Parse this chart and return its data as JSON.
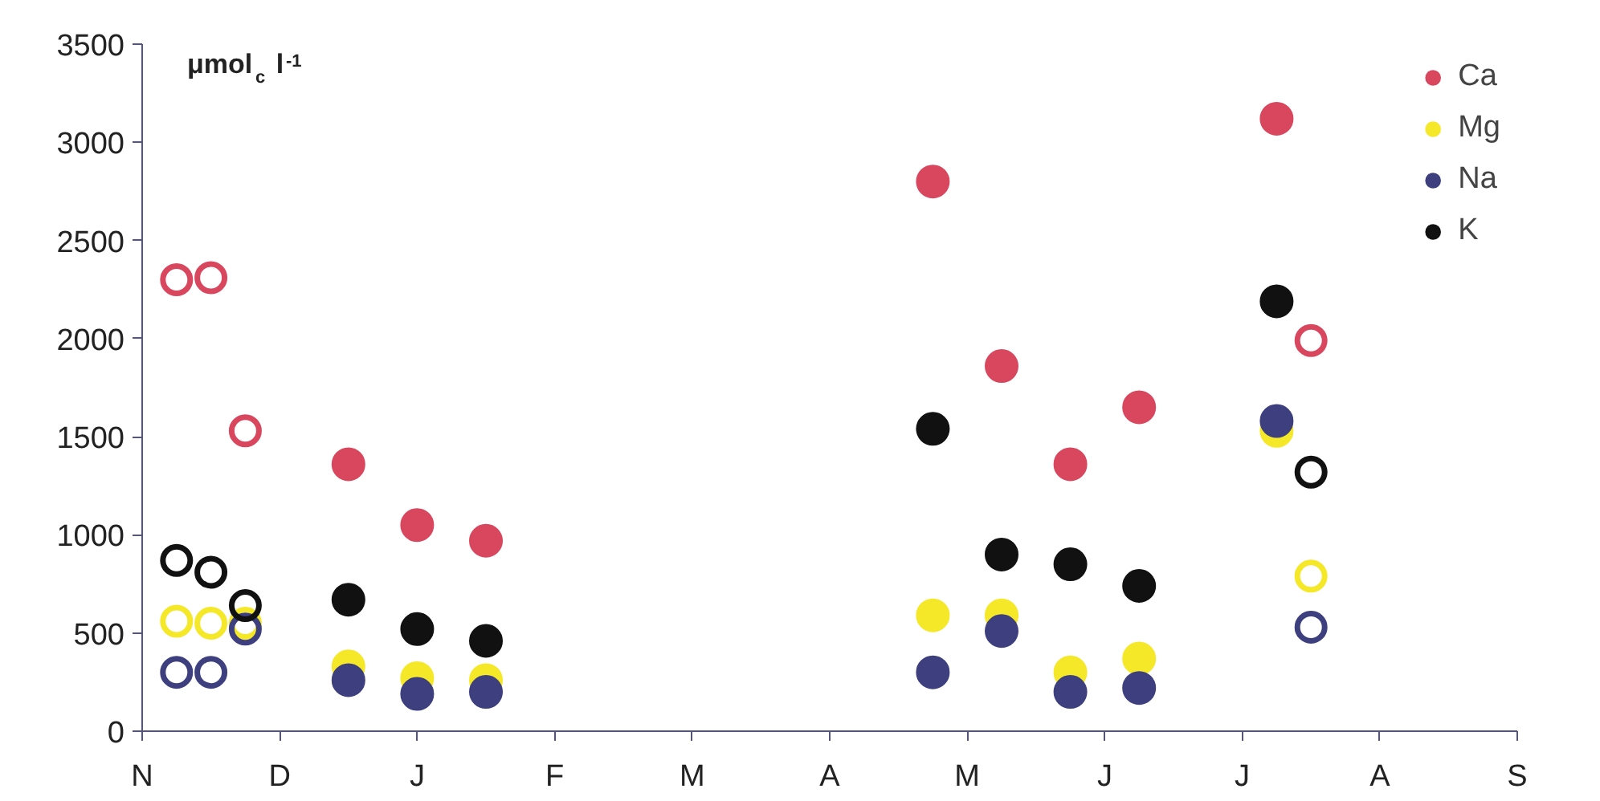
{
  "chart_data": {
    "type": "scatter",
    "ylabel": "μmol$_{c}$ l$^{-1}$",
    "categories": [
      "N",
      null,
      null,
      null,
      "D",
      null,
      null,
      null,
      "J",
      null,
      null,
      null,
      "F",
      null,
      null,
      null,
      "M",
      null,
      null,
      null,
      "A",
      null,
      null,
      null,
      "M",
      null,
      null,
      null,
      "J",
      null,
      null,
      null,
      "J",
      null,
      null,
      null,
      "A",
      null,
      null,
      null,
      "S"
    ],
    "ylim": [
      0,
      3500
    ],
    "yticks": [
      0,
      500,
      1000,
      1500,
      2000,
      2500,
      3000,
      3500
    ],
    "grid": false,
    "legend": "top right",
    "series": [
      {
        "name": "Ca",
        "color": "#d9475f",
        "marker": "circle",
        "values": [
          null,
          null,
          null,
          null,
          null,
          null,
          1360,
          null,
          1050,
          null,
          970,
          null,
          null,
          null,
          null,
          null,
          null,
          null,
          null,
          null,
          null,
          null,
          null,
          2800,
          null,
          1860,
          null,
          1360,
          null,
          1650,
          null,
          null,
          null,
          3120,
          null,
          null,
          null,
          null,
          null,
          null,
          null
        ]
      },
      {
        "name": "Mg",
        "color": "#f5e829",
        "marker": "circle",
        "values": [
          null,
          null,
          null,
          null,
          null,
          null,
          330,
          null,
          270,
          null,
          260,
          null,
          null,
          null,
          null,
          null,
          null,
          null,
          null,
          null,
          null,
          null,
          null,
          590,
          null,
          590,
          null,
          300,
          null,
          370,
          null,
          null,
          null,
          1530,
          null,
          null,
          null,
          null,
          null,
          null,
          null
        ]
      },
      {
        "name": "Na",
        "color": "#3d3f7e",
        "marker": "circle",
        "values": [
          null,
          null,
          null,
          null,
          null,
          null,
          260,
          null,
          190,
          null,
          200,
          null,
          null,
          null,
          null,
          null,
          null,
          null,
          null,
          null,
          null,
          null,
          null,
          300,
          null,
          510,
          null,
          200,
          null,
          220,
          null,
          null,
          null,
          1580,
          null,
          null,
          null,
          null,
          null,
          null,
          null
        ]
      },
      {
        "name": "K",
        "color": "#111111",
        "marker": "circle",
        "values": [
          null,
          null,
          null,
          null,
          null,
          null,
          670,
          null,
          520,
          null,
          460,
          null,
          null,
          null,
          null,
          null,
          null,
          null,
          null,
          null,
          null,
          null,
          null,
          1540,
          null,
          900,
          null,
          850,
          null,
          740,
          null,
          null,
          null,
          2190,
          null,
          null,
          null,
          null,
          null,
          null,
          null
        ]
      },
      {
        "color": "#d9475f",
        "marker": "circle_open",
        "values": [
          null,
          2300,
          2310,
          1530,
          null,
          null,
          null,
          null,
          null,
          null,
          null,
          null,
          null,
          null,
          null,
          null,
          null,
          null,
          null,
          null,
          null,
          null,
          null,
          null,
          null,
          null,
          null,
          null,
          null,
          null,
          null,
          null,
          null,
          null,
          1990,
          null,
          null,
          null,
          null,
          null,
          null
        ]
      },
      {
        "color": "#f5e829",
        "marker": "circle_open",
        "values": [
          null,
          560,
          550,
          550,
          null,
          null,
          null,
          null,
          null,
          null,
          null,
          null,
          null,
          null,
          null,
          null,
          null,
          null,
          null,
          null,
          null,
          null,
          null,
          null,
          null,
          null,
          null,
          null,
          null,
          null,
          null,
          null,
          null,
          null,
          790,
          null,
          null,
          null,
          null,
          null,
          null
        ]
      },
      {
        "color": "#3d3f7e",
        "marker": "circle_open",
        "values": [
          null,
          300,
          300,
          520,
          null,
          null,
          null,
          null,
          null,
          null,
          null,
          null,
          null,
          null,
          null,
          null,
          null,
          null,
          null,
          null,
          null,
          null,
          null,
          null,
          null,
          null,
          null,
          null,
          null,
          null,
          null,
          null,
          null,
          null,
          530,
          null,
          null,
          null,
          null,
          null,
          null
        ]
      },
      {
        "color": "#111111",
        "marker": "circle_open",
        "values": [
          null,
          870,
          810,
          640,
          null,
          null,
          null,
          null,
          null,
          null,
          null,
          null,
          null,
          null,
          null,
          null,
          null,
          null,
          null,
          null,
          null,
          null,
          null,
          null,
          null,
          null,
          null,
          null,
          null,
          null,
          null,
          null,
          null,
          null,
          1320,
          null,
          null,
          null,
          null,
          null,
          null
        ]
      }
    ]
  }
}
